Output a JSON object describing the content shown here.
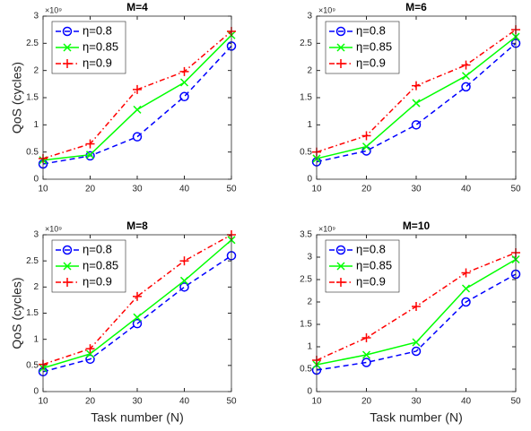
{
  "chart_data": [
    {
      "type": "line",
      "title": "M=4",
      "y_label": "QoS (cycles)",
      "y_multiplier": "×10⁹",
      "x": [
        10,
        20,
        30,
        40,
        50
      ],
      "xlim": [
        10,
        50
      ],
      "xticks": [
        10,
        20,
        30,
        40,
        50
      ],
      "ylim": [
        0,
        3
      ],
      "yticks": [
        0,
        0.5,
        1,
        1.5,
        2,
        2.5,
        3
      ],
      "legend": "upper left",
      "series": [
        {
          "name": "η=0.8",
          "color": "#0000ff",
          "marker": "o",
          "linestyle": "--",
          "values": [
            0.28,
            0.43,
            0.78,
            1.52,
            2.45
          ]
        },
        {
          "name": "η=0.85",
          "color": "#00ff00",
          "marker": "x",
          "linestyle": "-",
          "values": [
            0.35,
            0.45,
            1.28,
            1.78,
            2.65
          ]
        },
        {
          "name": "η=0.9",
          "color": "#ff0000",
          "marker": "+",
          "linestyle": "-.",
          "values": [
            0.38,
            0.65,
            1.65,
            1.98,
            2.72
          ]
        }
      ]
    },
    {
      "type": "line",
      "title": "M=6",
      "y_multiplier": "×10⁹",
      "x": [
        10,
        20,
        30,
        40,
        50
      ],
      "xlim": [
        10,
        50
      ],
      "xticks": [
        10,
        20,
        30,
        40,
        50
      ],
      "ylim": [
        0,
        3
      ],
      "yticks": [
        0,
        0.5,
        1,
        1.5,
        2,
        2.5,
        3
      ],
      "legend": "upper left",
      "series": [
        {
          "name": "η=0.8",
          "color": "#0000ff",
          "marker": "o",
          "linestyle": "--",
          "values": [
            0.32,
            0.52,
            1.0,
            1.7,
            2.5
          ]
        },
        {
          "name": "η=0.85",
          "color": "#00ff00",
          "marker": "x",
          "linestyle": "-",
          "values": [
            0.38,
            0.6,
            1.4,
            1.9,
            2.62
          ]
        },
        {
          "name": "η=0.9",
          "color": "#ff0000",
          "marker": "+",
          "linestyle": "-.",
          "values": [
            0.5,
            0.8,
            1.72,
            2.1,
            2.75
          ]
        }
      ]
    },
    {
      "type": "line",
      "title": "M=8",
      "y_label": "QoS (cycles)",
      "x_label": "Task number (N)",
      "y_multiplier": "×10⁹",
      "x": [
        10,
        20,
        30,
        40,
        50
      ],
      "xlim": [
        10,
        50
      ],
      "xticks": [
        10,
        20,
        30,
        40,
        50
      ],
      "ylim": [
        0,
        3
      ],
      "yticks": [
        0,
        0.5,
        1,
        1.5,
        2,
        2.5,
        3
      ],
      "legend": "upper left",
      "series": [
        {
          "name": "η=0.8",
          "color": "#0000ff",
          "marker": "o",
          "linestyle": "--",
          "values": [
            0.38,
            0.62,
            1.3,
            2.0,
            2.6
          ]
        },
        {
          "name": "η=0.85",
          "color": "#00ff00",
          "marker": "x",
          "linestyle": "-",
          "values": [
            0.45,
            0.72,
            1.42,
            2.12,
            2.9
          ]
        },
        {
          "name": "η=0.9",
          "color": "#ff0000",
          "marker": "+",
          "linestyle": "-.",
          "values": [
            0.52,
            0.82,
            1.82,
            2.5,
            3.0
          ]
        }
      ]
    },
    {
      "type": "line",
      "title": "M=10",
      "x_label": "Task number (N)",
      "y_multiplier": "×10⁹",
      "x": [
        10,
        20,
        30,
        40,
        50
      ],
      "xlim": [
        10,
        50
      ],
      "xticks": [
        10,
        20,
        30,
        40,
        50
      ],
      "ylim": [
        0,
        3.5
      ],
      "yticks": [
        0,
        0.5,
        1,
        1.5,
        2,
        2.5,
        3,
        3.5
      ],
      "legend": "upper left",
      "series": [
        {
          "name": "η=0.8",
          "color": "#0000ff",
          "marker": "o",
          "linestyle": "--",
          "values": [
            0.48,
            0.65,
            0.9,
            2.0,
            2.62
          ]
        },
        {
          "name": "η=0.85",
          "color": "#00ff00",
          "marker": "x",
          "linestyle": "-",
          "values": [
            0.6,
            0.82,
            1.1,
            2.3,
            2.95
          ]
        },
        {
          "name": "η=0.9",
          "color": "#ff0000",
          "marker": "+",
          "linestyle": "-.",
          "values": [
            0.7,
            1.2,
            1.9,
            2.65,
            3.1
          ]
        }
      ]
    }
  ]
}
